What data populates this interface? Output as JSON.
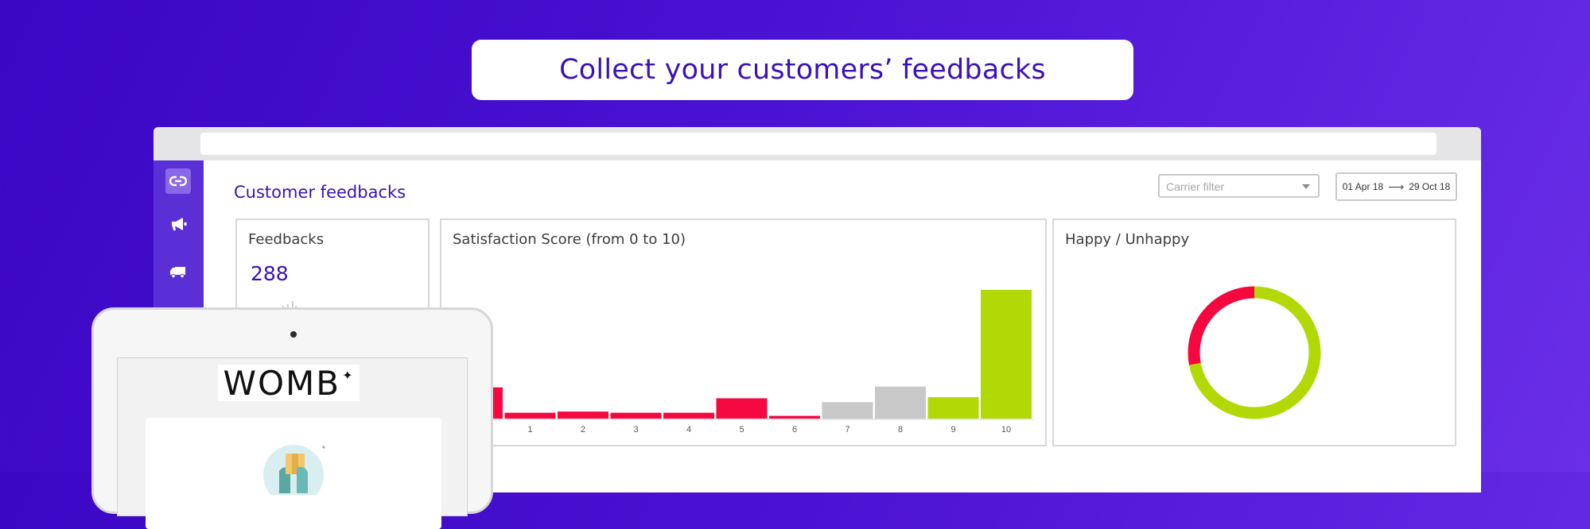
{
  "headline": "Collect your customers’ feedbacks",
  "page_title": "Customer feedbacks",
  "carrier_filter": {
    "placeholder": "Carrier filter"
  },
  "date_range": {
    "from": "01 Apr 18",
    "arrow": "⟶",
    "to": "29 Oct 18"
  },
  "sidebar": {
    "items": [
      {
        "icon": "megaphone-icon"
      },
      {
        "icon": "truck-icon"
      }
    ]
  },
  "feedbacks_card": {
    "title": "Feedbacks",
    "value": "288"
  },
  "score_card": {
    "title": "Satisfaction Score (from 0 to 10)"
  },
  "happy_card": {
    "title": "Happy / Unhappy"
  },
  "tablet": {
    "logo_text": "WOMB",
    "logo_mark": "✦"
  },
  "colors": {
    "unhappy": "#f5073f",
    "neutral": "#c8c8c8",
    "happy": "#b2d906",
    "accent": "#3a12b8"
  },
  "chart_data": [
    {
      "type": "bar",
      "title": "Satisfaction Score (from 0 to 10)",
      "categories": [
        "0",
        "1",
        "2",
        "3",
        "4",
        "5",
        "6",
        "7",
        "8",
        "9",
        "10"
      ],
      "values": [
        8,
        1.5,
        1.8,
        1.5,
        1.5,
        5.2,
        0.7,
        4.2,
        8.2,
        5.5,
        33
      ],
      "ylim": [
        0,
        34
      ],
      "grid": false
    },
    {
      "type": "pie",
      "title": "Happy / Unhappy",
      "labels": [
        "Happy",
        "Unhappy"
      ],
      "values": [
        72,
        28
      ]
    }
  ]
}
